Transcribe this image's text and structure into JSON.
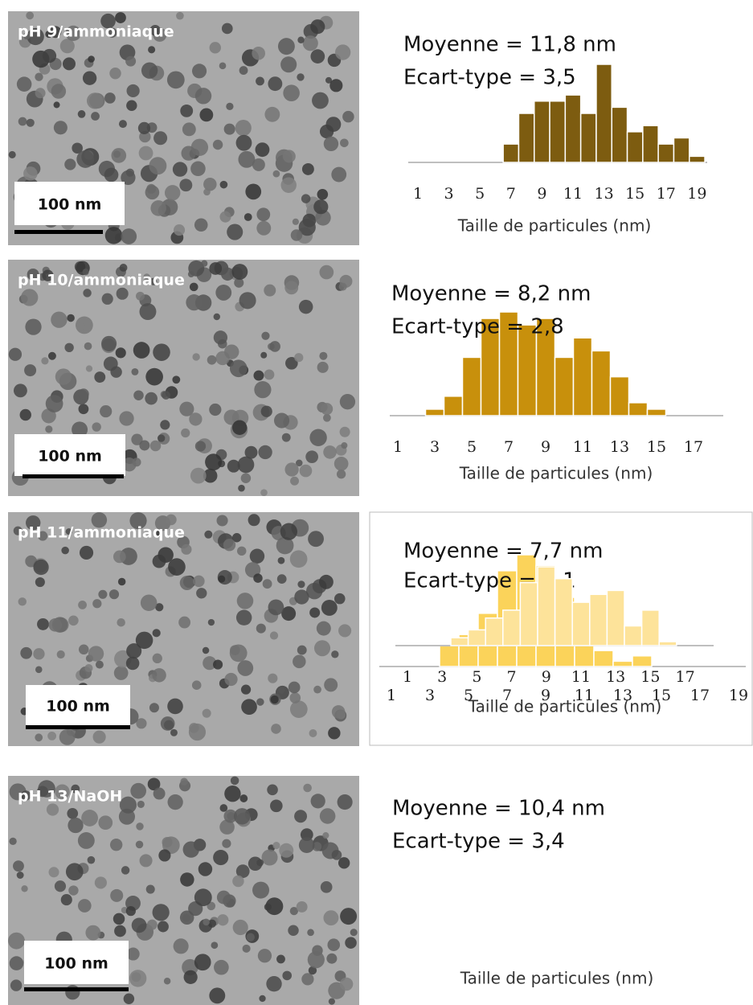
{
  "images": [
    {
      "label": "pH 9/ammoniaque",
      "scale_bar": "100 nm"
    },
    {
      "label": "pH 10/ammoniaque",
      "scale_bar": "100 nm"
    },
    {
      "label": "pH 11/ammoniaque",
      "scale_bar": "100 nm"
    },
    {
      "label": "pH 13/NaOH",
      "scale_bar": "100 nm"
    }
  ],
  "chart_data": [
    {
      "type": "bar",
      "annotations": [
        "Moyenne = 11,8 nm",
        "Ecart-type = 3,5"
      ],
      "x_label": "Taille de particules (nm)",
      "categories": [
        1,
        null,
        3,
        null,
        5,
        null,
        7,
        null,
        9,
        null,
        11,
        null,
        13,
        null,
        15,
        null,
        17,
        null,
        19
      ],
      "values": [
        0,
        0,
        0,
        0,
        0,
        0,
        3,
        8,
        10,
        10,
        11,
        8,
        16,
        9,
        5,
        6,
        3,
        4,
        1
      ],
      "color": "#7d5c10"
    },
    {
      "type": "bar",
      "annotations": [
        "Moyenne = 8,2 nm",
        "Ecart-type = 2,8"
      ],
      "x_label": "Taille de particules (nm)",
      "categories": [
        1,
        null,
        3,
        null,
        5,
        null,
        7,
        null,
        9,
        null,
        11,
        null,
        13,
        null,
        15,
        null,
        17
      ],
      "values": [
        0,
        0,
        1,
        3,
        9,
        15,
        16,
        14,
        15,
        9,
        12,
        10,
        6,
        2,
        1,
        0,
        0
      ],
      "color": "#c8900c"
    },
    {
      "type": "bar",
      "annotations": [
        "Moyenne = 7,7 nm",
        "Ecart-type = 2,1"
      ],
      "x_label": "Taille de particules (nm)",
      "categories": [
        1,
        null,
        3,
        null,
        5,
        null,
        7,
        null,
        9,
        null,
        11,
        null,
        13,
        null,
        15,
        null,
        17,
        null,
        19
      ],
      "values": [
        0,
        0,
        0,
        4,
        6,
        10,
        18,
        21,
        19,
        13,
        6,
        3,
        1,
        2,
        0,
        0,
        0,
        0,
        0
      ],
      "color": "#fbd35a"
    },
    {
      "type": "bar",
      "annotations": [
        "Moyenne = 10,4 nm",
        "Ecart-type = 3,4"
      ],
      "x_label": "Taille de particules (nm)",
      "categories": [
        1,
        null,
        3,
        null,
        5,
        null,
        7,
        null,
        9,
        null,
        11,
        null,
        13,
        null,
        15,
        null,
        17
      ],
      "values": [
        0,
        0,
        0,
        2,
        4,
        7,
        9,
        16,
        20,
        17,
        11,
        13,
        14,
        5,
        9,
        1,
        0
      ],
      "color": "#fde39a"
    }
  ]
}
